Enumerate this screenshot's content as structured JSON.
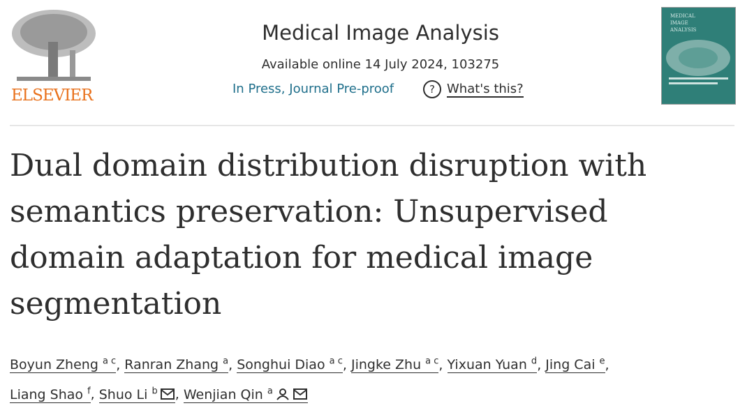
{
  "header": {
    "publisher": "ELSEVIER",
    "journal": "Medical Image Analysis",
    "availability": "Available online 14 July 2024, 103275",
    "status": "In Press, Journal Pre-proof",
    "help_icon": "?",
    "help_link": "What's this?",
    "cover_title": [
      "MEDICAL",
      "IMAGE",
      "ANALYSIS"
    ]
  },
  "article": {
    "title_lines": [
      "Dual domain distribution disruption with",
      "semantics preservation: Unsupervised",
      "domain adaptation for medical image",
      "segmentation"
    ],
    "separator": ",",
    "author_lines": [
      [
        {
          "name": "Boyun Zheng",
          "sup": "a c"
        },
        {
          "name": "Ranran Zhang",
          "sup": "a"
        },
        {
          "name": "Songhui Diao",
          "sup": "a c"
        },
        {
          "name": "Jingke Zhu",
          "sup": "a c"
        },
        {
          "name": "Yixuan Yuan",
          "sup": "d"
        },
        {
          "name": "Jing Cai",
          "sup": "e"
        }
      ],
      [
        {
          "name": "Liang Shao",
          "sup": "f"
        },
        {
          "name": "Shuo Li",
          "sup": "b",
          "mail": true
        },
        {
          "name": "Wenjian Qin",
          "sup": "a",
          "person": true,
          "mail": true
        }
      ]
    ]
  }
}
